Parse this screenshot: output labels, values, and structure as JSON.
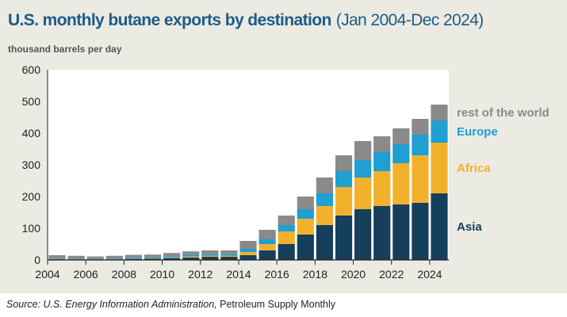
{
  "source": {
    "prefix": "Source: U.S. Energy Information Administration,",
    "publication": "Petroleum Supply Monthly"
  },
  "chart_data": {
    "type": "bar",
    "stacked": true,
    "title": "U.S. monthly butane exports by destination",
    "subtitle": "(Jan 2004-Dec 2024)",
    "ylabel": "thousand barrels per day",
    "xlabel": "",
    "ylim": [
      0,
      600
    ],
    "xlim": [
      2004,
      2025
    ],
    "yticks": [
      0,
      100,
      200,
      300,
      400,
      500,
      600
    ],
    "xticks": [
      2004,
      2006,
      2008,
      2010,
      2012,
      2014,
      2016,
      2018,
      2020,
      2022,
      2024
    ],
    "grid": false,
    "legend": "direct labels on the right",
    "colors": {
      "Asia": "#163f5c",
      "Africa": "#f2b12c",
      "Europe": "#1f9fd2",
      "rest of the world": "#8a8a8a"
    },
    "period": {
      "start": "Jan 2004",
      "end": "Dec 2024",
      "frequency": "monthly"
    },
    "categories": [
      "2004",
      "2005",
      "2006",
      "2007",
      "2008",
      "2009",
      "2010",
      "2011",
      "2012",
      "2013",
      "2014",
      "2015",
      "2016",
      "2017",
      "2018",
      "2019",
      "2020",
      "2021",
      "2022",
      "2023",
      "2024"
    ],
    "series": [
      {
        "name": "Asia",
        "values": [
          1,
          1,
          1,
          2,
          3,
          4,
          6,
          8,
          10,
          10,
          15,
          30,
          50,
          80,
          110,
          140,
          160,
          170,
          175,
          180,
          210
        ]
      },
      {
        "name": "Africa",
        "values": [
          0,
          0,
          0,
          0,
          0,
          1,
          2,
          3,
          3,
          3,
          10,
          20,
          40,
          50,
          60,
          90,
          100,
          110,
          130,
          150,
          160
        ]
      },
      {
        "name": "Europe",
        "values": [
          2,
          2,
          2,
          2,
          3,
          3,
          4,
          4,
          5,
          5,
          10,
          15,
          20,
          30,
          40,
          50,
          55,
          60,
          60,
          65,
          70
        ]
      },
      {
        "name": "rest of the world",
        "values": [
          12,
          10,
          8,
          9,
          10,
          9,
          10,
          12,
          12,
          12,
          25,
          30,
          30,
          40,
          50,
          50,
          60,
          50,
          50,
          50,
          50
        ]
      }
    ]
  }
}
